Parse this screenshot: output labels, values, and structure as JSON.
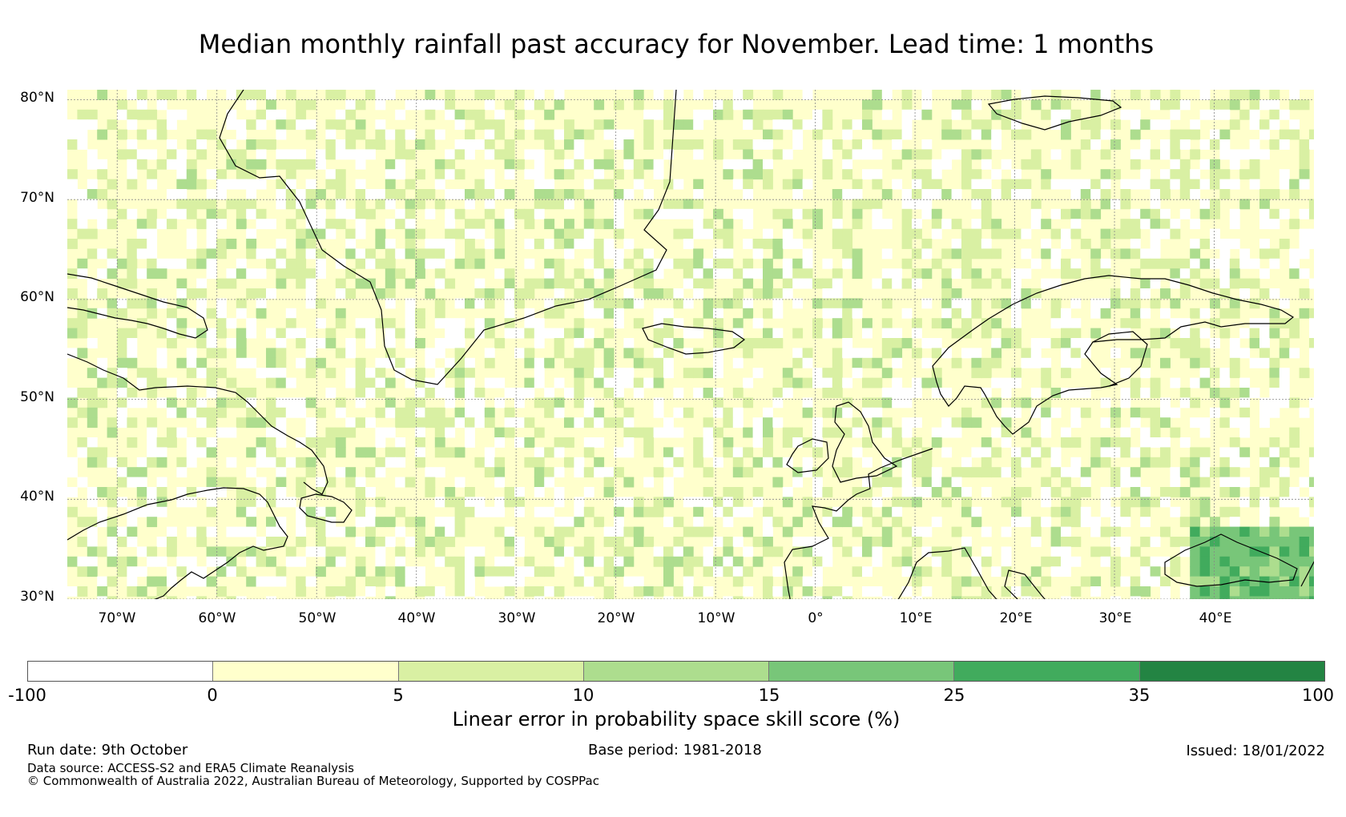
{
  "title": "Median monthly rainfall past accuracy for November. Lead time: 1 months",
  "map": {
    "lon_range": [
      -75,
      50
    ],
    "lat_range": [
      30,
      81
    ],
    "lat_labels": [
      "80°N",
      "70°N",
      "60°N",
      "50°N",
      "40°N",
      "30°N"
    ],
    "lat_values": [
      80,
      70,
      60,
      50,
      40,
      30
    ],
    "lon_labels": [
      "70°W",
      "60°W",
      "50°W",
      "40°W",
      "30°W",
      "20°W",
      "10°W",
      "0°",
      "10°E",
      "20°E",
      "30°E",
      "40°E"
    ],
    "lon_values": [
      -70,
      -60,
      -50,
      -40,
      -30,
      -20,
      -10,
      0,
      10,
      20,
      30,
      40
    ],
    "colors": [
      "#ffffff",
      "#ffffcc",
      "#d9f0a3",
      "#addd8e",
      "#78c679",
      "#41ab5d",
      "#238443"
    ],
    "coast_color": "#000000",
    "grid_color": "#888888"
  },
  "colorbar": {
    "ticks": [
      "-100",
      "0",
      "5",
      "10",
      "15",
      "25",
      "35",
      "100"
    ],
    "label": "Linear error in probability space skill score (%)"
  },
  "footer": {
    "run_date": "Run date: 9th October",
    "base_period": "Base period: 1981-2018",
    "issued": "Issued: 18/01/2022",
    "data_source": "Data source: ACCESS-S2 and ERA5 Climate Reanalysis",
    "copyright": "© Commonwealth of Australia 2022, Australian Bureau of Meteorology, Supported by COSPPac"
  }
}
